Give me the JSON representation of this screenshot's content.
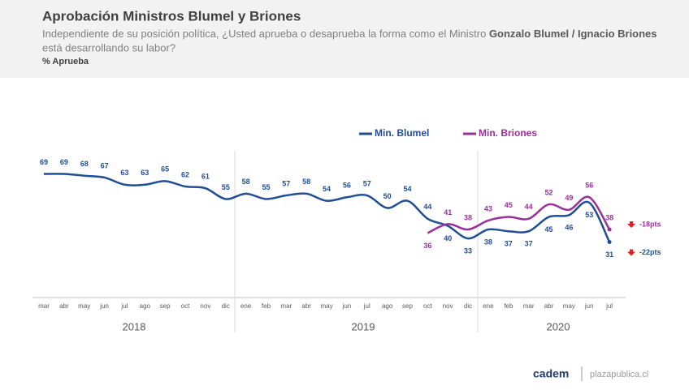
{
  "chart_data": {
    "type": "line",
    "title": "Aprobación Ministros Blumel y Briones",
    "subtitle": [
      "Independiente de su posición política, ¿Usted aprueba o desaprueba la forma como el Ministro ",
      "Gonzalo Blumel / Ignacio Briones",
      " está desarrollando su labor?"
    ],
    "measure": "% Aprueba",
    "categories": [
      "mar",
      "abr",
      "may",
      "jun",
      "jul",
      "ago",
      "sep",
      "oct",
      "nov",
      "dic",
      "ene",
      "feb",
      "mar",
      "abr",
      "may",
      "jun",
      "jul",
      "ago",
      "sep",
      "oct",
      "nov",
      "dic",
      "ene",
      "feb",
      "mar",
      "abr",
      "may",
      "jun",
      "jul"
    ],
    "years": [
      "2018",
      "2019",
      "2020"
    ],
    "series": [
      {
        "name": "Min. Blumel",
        "color": "#1f4e96",
        "values": [
          69,
          69,
          68,
          67,
          63,
          63,
          65,
          62,
          61,
          55,
          58,
          55,
          57,
          58,
          54,
          56,
          57,
          50,
          54,
          44,
          40,
          33,
          38,
          37,
          37,
          45,
          46,
          53,
          31
        ]
      },
      {
        "name": "Min. Briones",
        "color": "#9b2f9b",
        "values": [
          null,
          null,
          null,
          null,
          null,
          null,
          null,
          null,
          null,
          null,
          null,
          null,
          null,
          null,
          null,
          null,
          null,
          null,
          null,
          36,
          41,
          38,
          43,
          45,
          44,
          52,
          49,
          56,
          38
        ]
      }
    ],
    "annotations": [
      "-18pts",
      "-22pts"
    ],
    "ylim": [
      0,
      100
    ],
    "footer": {
      "brand": "cadem",
      "site": "plazapublica.cl"
    }
  }
}
